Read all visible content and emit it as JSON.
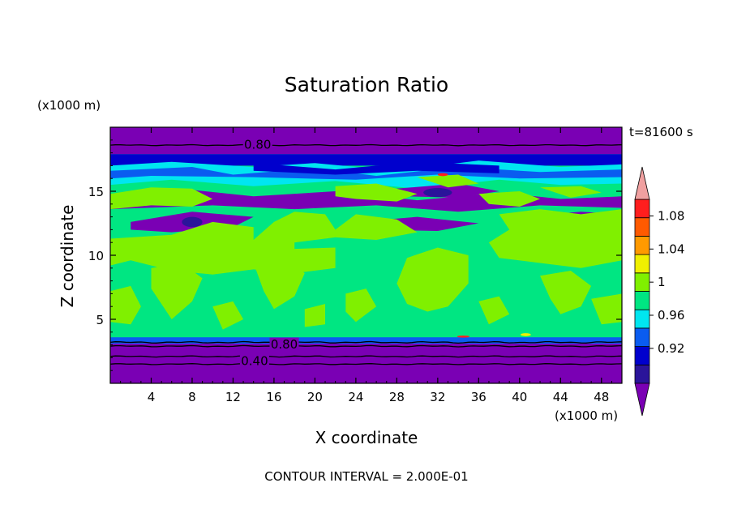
{
  "chart_data": {
    "type": "heatmap",
    "title": "Saturation Ratio",
    "xlabel": "X coordinate",
    "ylabel": "Z coordinate",
    "x_unit": "(x1000 m)",
    "y_unit": "(x1000 m)",
    "time_label": "t=81600 s",
    "footer": "CONTOUR INTERVAL = 2.000E-01",
    "xlim": [
      0,
      50
    ],
    "ylim": [
      0,
      20
    ],
    "x_ticks": [
      "4",
      "8",
      "12",
      "16",
      "20",
      "24",
      "28",
      "32",
      "36",
      "40",
      "44",
      "48"
    ],
    "y_ticks": [
      "5",
      "10",
      "15"
    ],
    "contour_labels": [
      "0.80",
      "0.80",
      "0.40"
    ],
    "colorbar": {
      "labels": [
        "0.92",
        "0.96",
        "1",
        "1.04",
        "1.08"
      ],
      "levels": [
        0.9,
        0.92,
        0.94,
        0.96,
        0.98,
        1.0,
        1.02,
        1.04,
        1.06,
        1.08,
        1.1
      ],
      "colors": [
        "#7a00b4",
        "#2a149a",
        "#0000cd",
        "#0a5cf0",
        "#00e6f0",
        "#00e682",
        "#80f000",
        "#f0f000",
        "#ff9a00",
        "#ff5a00",
        "#ff1e1e",
        "#f0a0a0"
      ]
    },
    "bands": [
      {
        "z": [
          0.0,
          3.1
        ],
        "level": "below 0.92"
      },
      {
        "z": [
          3.1,
          3.6
        ],
        "level": "0.94-0.96"
      },
      {
        "z": [
          3.6,
          17.0
        ],
        "level": "0.98-1.02"
      },
      {
        "z": [
          17.0,
          17.9
        ],
        "level": "0.92-0.96"
      },
      {
        "z": [
          17.9,
          20.0
        ],
        "level": "below 0.92"
      }
    ]
  }
}
